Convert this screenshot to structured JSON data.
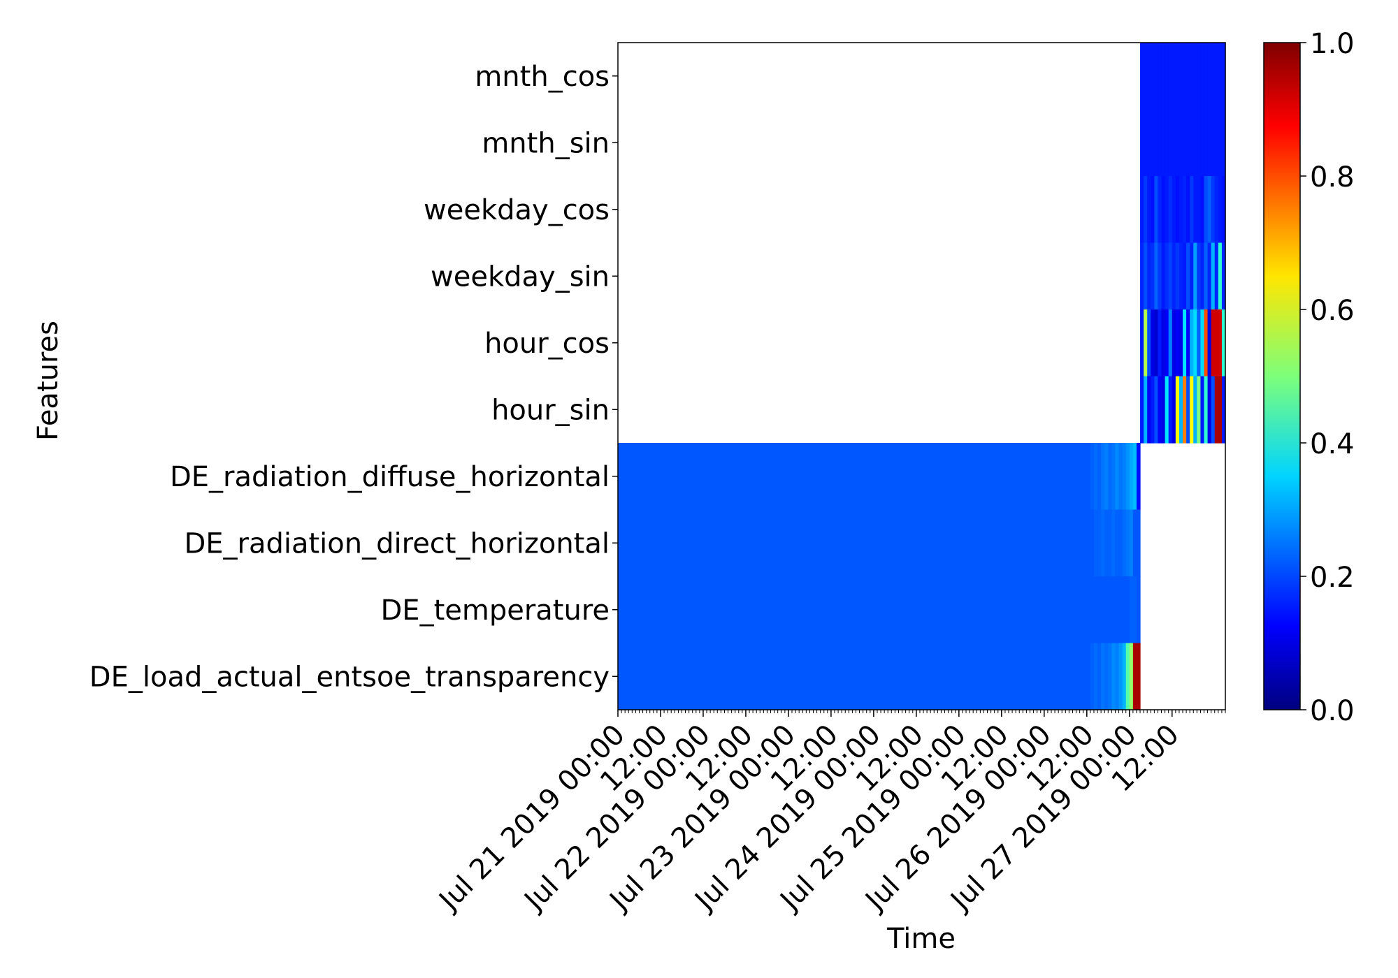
{
  "chart_data": {
    "type": "heatmap",
    "title": "",
    "xlabel": "Time",
    "ylabel": "Features",
    "features": [
      "mnth_cos",
      "mnth_sin",
      "weekday_cos",
      "weekday_sin",
      "hour_cos",
      "hour_sin",
      "DE_radiation_diffuse_horizontal",
      "DE_radiation_direct_horizontal",
      "DE_temperature",
      "DE_load_actual_entsoe_transparency"
    ],
    "x_start": "2019-07-21 00:00",
    "x_end": "2019-07-28 03:00",
    "encoder_end": "2019-07-27 03:00",
    "time_step": "1h",
    "x_tick_labels": [
      "Jul 21 2019 00:00",
      "12:00",
      "Jul 22 2019 00:00",
      "12:00",
      "Jul 23 2019 00:00",
      "12:00",
      "Jul 24 2019 00:00",
      "12:00",
      "Jul 25 2019 00:00",
      "12:00",
      "Jul 26 2019 00:00",
      "12:00",
      "Jul 27 2019 00:00",
      "12:00"
    ],
    "colorbar": {
      "colormap": "jet",
      "range": [
        0.0,
        1.0
      ],
      "ticks": [
        "0.0",
        "0.2",
        "0.4",
        "0.6",
        "0.8",
        "1.0"
      ]
    },
    "encoder_features": {
      "DE_radiation_diffuse_horizontal": {
        "base": 0.21,
        "tail": [
          0.22,
          0.23,
          0.22,
          0.24,
          0.25,
          0.23,
          0.24,
          0.26,
          0.24,
          0.25,
          0.27,
          0.29,
          0.31,
          0.14
        ]
      },
      "DE_radiation_direct_horizontal": {
        "base": 0.21,
        "tail": [
          0.21,
          0.22,
          0.22,
          0.23,
          0.22,
          0.22,
          0.23,
          0.22,
          0.22,
          0.23,
          0.24,
          0.25,
          0.21,
          0.21
        ]
      },
      "DE_temperature": {
        "base": 0.21,
        "tail": [
          0.21,
          0.21,
          0.21,
          0.21,
          0.21,
          0.21,
          0.21,
          0.21,
          0.21,
          0.21,
          0.21,
          0.22,
          0.22,
          0.21
        ]
      },
      "DE_load_actual_entsoe_transparency": {
        "base": 0.21,
        "tail": [
          0.22,
          0.23,
          0.22,
          0.24,
          0.23,
          0.24,
          0.26,
          0.25,
          0.27,
          0.3,
          0.46,
          0.52,
          0.96,
          0.96
        ]
      }
    },
    "decoder_features": {
      "mnth_cos": [
        0.15,
        0.15,
        0.15,
        0.15,
        0.15,
        0.15,
        0.15,
        0.15,
        0.15,
        0.15,
        0.15,
        0.15,
        0.15,
        0.15,
        0.15,
        0.15,
        0.15,
        0.15,
        0.15,
        0.15,
        0.15,
        0.15,
        0.15,
        0.15
      ],
      "mnth_sin": [
        0.15,
        0.15,
        0.15,
        0.15,
        0.15,
        0.15,
        0.15,
        0.15,
        0.15,
        0.15,
        0.15,
        0.15,
        0.15,
        0.15,
        0.15,
        0.15,
        0.15,
        0.15,
        0.15,
        0.15,
        0.15,
        0.15,
        0.15,
        0.15
      ],
      "weekday_cos": [
        0.15,
        0.18,
        0.15,
        0.14,
        0.2,
        0.16,
        0.14,
        0.15,
        0.17,
        0.15,
        0.14,
        0.15,
        0.16,
        0.14,
        0.18,
        0.15,
        0.15,
        0.14,
        0.2,
        0.22,
        0.18,
        0.16,
        0.15,
        0.14
      ],
      "weekday_sin": [
        0.16,
        0.2,
        0.16,
        0.17,
        0.22,
        0.18,
        0.15,
        0.17,
        0.19,
        0.16,
        0.18,
        0.16,
        0.15,
        0.2,
        0.16,
        0.28,
        0.18,
        0.16,
        0.22,
        0.16,
        0.3,
        0.16,
        0.42,
        0.16
      ],
      "hour_cos": [
        0.15,
        0.55,
        0.2,
        0.1,
        0.08,
        0.15,
        0.1,
        0.12,
        0.25,
        0.1,
        0.12,
        0.1,
        0.35,
        0.12,
        0.3,
        0.34,
        0.22,
        0.34,
        0.8,
        0.1,
        0.92,
        0.92,
        0.92,
        0.42
      ],
      "hour_sin": [
        0.15,
        0.3,
        0.12,
        0.15,
        0.2,
        0.12,
        0.1,
        0.35,
        0.15,
        0.1,
        0.62,
        0.3,
        0.75,
        0.2,
        0.62,
        0.3,
        0.5,
        0.15,
        0.42,
        0.1,
        0.2,
        0.96,
        0.96,
        0.15
      ]
    }
  }
}
